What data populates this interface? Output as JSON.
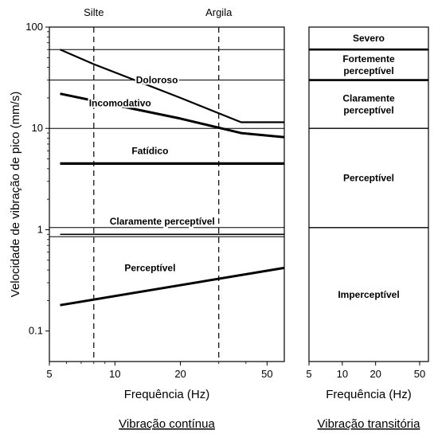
{
  "chart_data": [
    {
      "type": "line",
      "x_scale": "log",
      "y_scale": "log",
      "xlim": [
        5,
        60
      ],
      "ylim": [
        0.05,
        100
      ],
      "xlabel": "Frequência (Hz)",
      "ylabel": "Velocidade de vibração de pico (mm/s)",
      "x_ticks": [
        "5",
        "10",
        "20",
        "50"
      ],
      "y_ticks": [
        "0.1",
        "1",
        "10",
        "100"
      ],
      "caption": "Vibração contínua",
      "reference_lines": [
        {
          "label": "Silte",
          "x": 8
        },
        {
          "label": "Argila",
          "x": 30
        }
      ],
      "series": [
        {
          "name": "Doloroso",
          "x": [
            5.6,
            8,
            20,
            38,
            60
          ],
          "y": [
            60,
            43,
            20,
            11.5,
            11.5
          ]
        },
        {
          "name": "Incomodativo",
          "x": [
            5.6,
            10,
            20,
            38,
            60
          ],
          "y": [
            22,
            17,
            12.5,
            9,
            8.2
          ]
        },
        {
          "name": "Fatídico",
          "x": [
            5.6,
            60
          ],
          "y": [
            4.5,
            4.5
          ]
        },
        {
          "name": "Claramente perceptível",
          "x": [
            5.6,
            60
          ],
          "y": [
            0.9,
            0.9
          ]
        },
        {
          "name": "Perceptível",
          "x": [
            5.6,
            60
          ],
          "y": [
            0.18,
            0.42
          ]
        }
      ]
    },
    {
      "type": "table",
      "xlim": [
        5,
        60
      ],
      "xlabel": "Frequência (Hz)",
      "x_ticks": [
        "5",
        "10",
        "20",
        "50"
      ],
      "caption": "Vibração transitória",
      "zones": [
        {
          "label": "Severo",
          "from": 60,
          "to": 100
        },
        {
          "label": "Fortemente perceptível",
          "from": 30,
          "to": 60
        },
        {
          "label": "Claramente perceptível",
          "from": 10,
          "to": 30
        },
        {
          "label": "Perceptível",
          "from": 1.05,
          "to": 10
        },
        {
          "label": "Imperceptível",
          "from": 0.05,
          "to": 1.05
        }
      ]
    }
  ],
  "colors": {
    "ink": "#000000",
    "background": "#ffffff"
  }
}
